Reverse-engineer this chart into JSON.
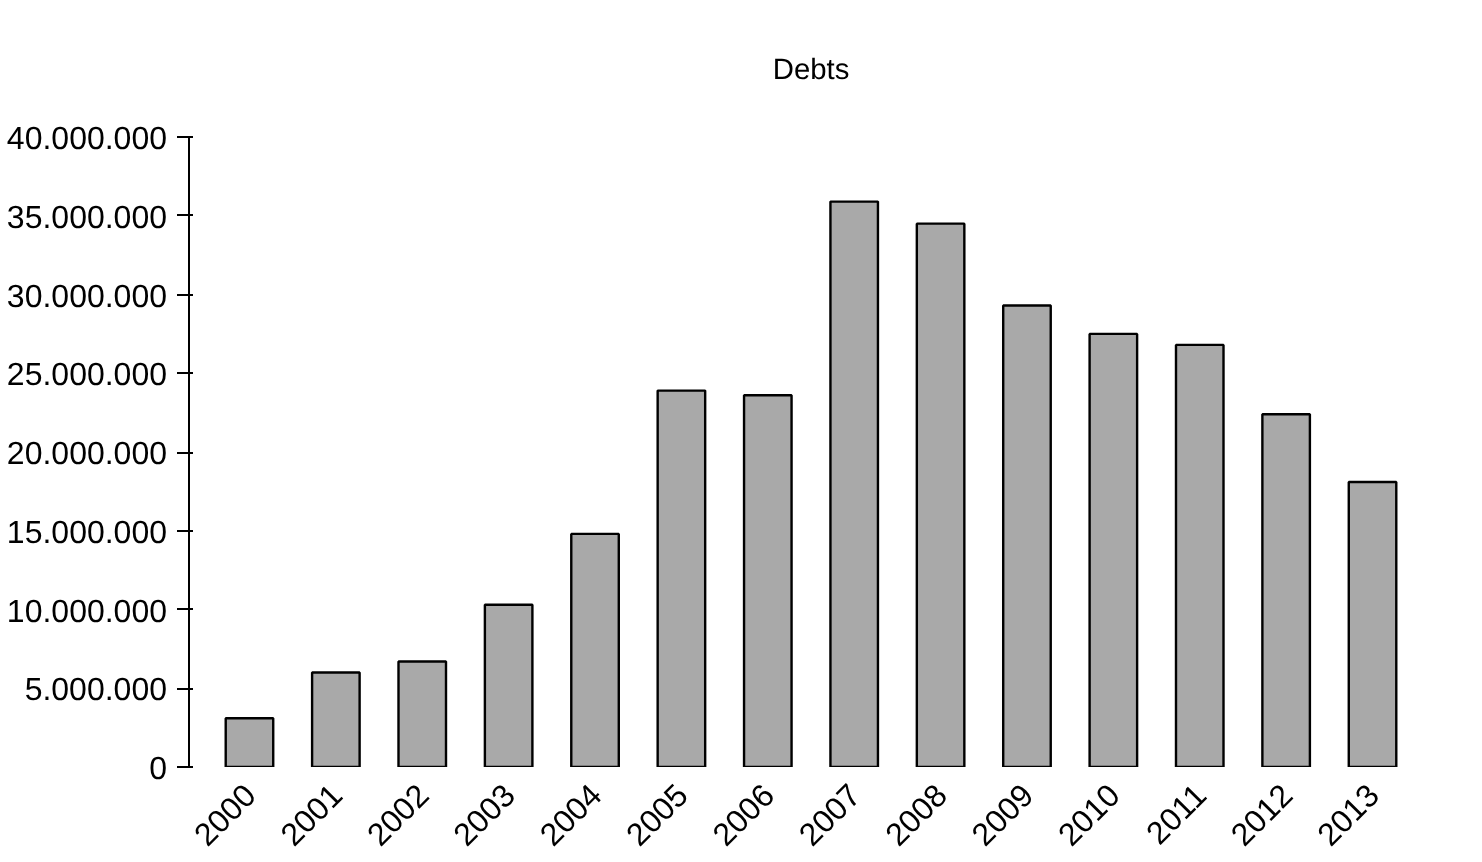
{
  "chart_data": {
    "type": "bar",
    "title": "Debts",
    "categories": [
      "2000",
      "2001",
      "2002",
      "2003",
      "2004",
      "2005",
      "2006",
      "2007",
      "2008",
      "2009",
      "2010",
      "2011",
      "2012",
      "2013"
    ],
    "values": [
      3100000,
      6000000,
      6700000,
      10300000,
      14800000,
      23900000,
      23600000,
      35900000,
      34500000,
      29300000,
      27500000,
      26800000,
      22400000,
      18100000
    ],
    "color": "#a9a9a9",
    "ylim": [
      0,
      40000000
    ],
    "yticks": [
      {
        "value": 0,
        "label": "0"
      },
      {
        "value": 5000000,
        "label": "5.000.000"
      },
      {
        "value": 10000000,
        "label": "10.000.000"
      },
      {
        "value": 15000000,
        "label": "15.000.000"
      },
      {
        "value": 20000000,
        "label": "20.000.000"
      },
      {
        "value": 25000000,
        "label": "25.000.000"
      },
      {
        "value": 30000000,
        "label": "30.000.000"
      },
      {
        "value": 35000000,
        "label": "35.000.000"
      },
      {
        "value": 40000000,
        "label": "40.000.000"
      }
    ],
    "grid": false
  }
}
